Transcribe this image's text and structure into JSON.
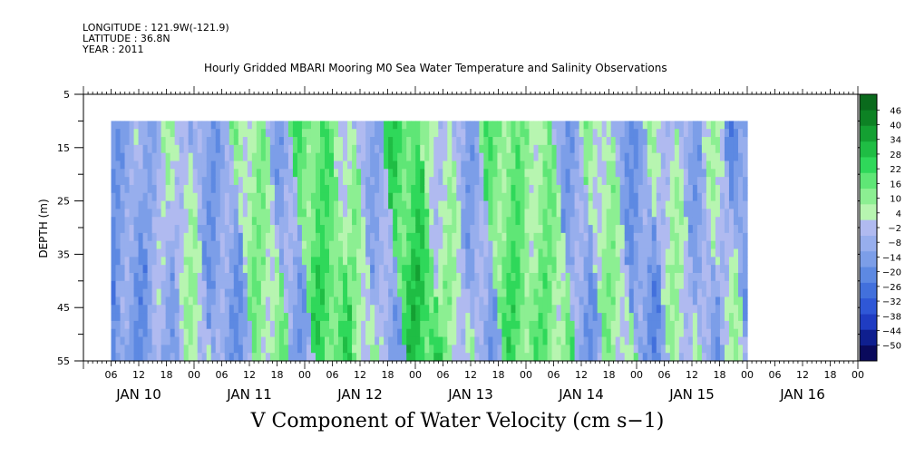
{
  "header": {
    "longitude": "LONGITUDE : 121.9W(-121.9)",
    "latitude": "LATITUDE : 36.8N",
    "year": "YEAR : 2011"
  },
  "chart_data": {
    "type": "heatmap",
    "title": "Hourly Gridded MBARI Mooring M0 Sea Water Temperature and Salinity Observations",
    "xlabel": "V Component of Water Velocity (cm s−1)",
    "ylabel": "DEPTH (m)",
    "y_range": [
      5,
      55
    ],
    "y_inverted": true,
    "y_ticks": [
      5,
      15,
      25,
      35,
      45,
      55
    ],
    "x_range_hours": [
      0,
      168
    ],
    "x_ticks_hour_labels": [
      "06",
      "12",
      "18",
      "00",
      "06",
      "12",
      "18",
      "00",
      "06",
      "12",
      "18",
      "00",
      "06",
      "12",
      "18",
      "00",
      "06",
      "12",
      "18",
      "00",
      "06",
      "12",
      "18",
      "00",
      "06",
      "12",
      "18",
      "00"
    ],
    "day_labels": [
      "JAN 10",
      "JAN 11",
      "JAN 12",
      "JAN 13",
      "JAN 14",
      "JAN 15",
      "JAN 16"
    ],
    "data_depth_range": [
      10,
      55
    ],
    "data_time_start_hour": 6,
    "data_time_end_hour": 144,
    "colorbar": {
      "levels": [
        -50,
        -44,
        -38,
        -32,
        -26,
        -20,
        -14,
        -8,
        -2,
        4,
        10,
        16,
        22,
        28,
        34,
        40,
        46
      ],
      "labels": [
        "46",
        "40",
        "34",
        "28",
        "22",
        "16",
        "10",
        "4",
        "−2",
        "−8",
        "−14",
        "−20",
        "−26",
        "−32",
        "−38",
        "−44",
        "−50"
      ],
      "colors_bottom_to_top": [
        "#0a0a5c",
        "#0f1f8f",
        "#1f3cc2",
        "#2f57d6",
        "#4270dc",
        "#5d89e2",
        "#7c9ee8",
        "#97aeed",
        "#b0baf0",
        "#b7f5b0",
        "#8cef92",
        "#5fe676",
        "#2fd85a",
        "#1fbd44",
        "#14a032",
        "#0d8224",
        "#0a6a1c"
      ]
    },
    "pattern_note": "Alternating diagonal bands of positive (green) and negative (blue) northward velocity propagating through the water column; strongest positive values near Jan 12-13 at depth 35-55 m.",
    "bands": [
      {
        "start": 6,
        "end": 13,
        "value": -9
      },
      {
        "start": 13,
        "end": 19,
        "value": -4
      },
      {
        "start": 19,
        "end": 25,
        "value": 5
      },
      {
        "start": 25,
        "end": 34,
        "value": -8
      },
      {
        "start": 34,
        "end": 42,
        "value": 10
      },
      {
        "start": 42,
        "end": 47,
        "value": -6
      },
      {
        "start": 47,
        "end": 56,
        "value": 18
      },
      {
        "start": 56,
        "end": 61,
        "value": 8
      },
      {
        "start": 61,
        "end": 67,
        "value": -5
      },
      {
        "start": 67,
        "end": 75,
        "value": 22
      },
      {
        "start": 75,
        "end": 82,
        "value": 6
      },
      {
        "start": 82,
        "end": 88,
        "value": -6
      },
      {
        "start": 88,
        "end": 96,
        "value": 16
      },
      {
        "start": 96,
        "end": 104,
        "value": 12
      },
      {
        "start": 104,
        "end": 110,
        "value": -7
      },
      {
        "start": 110,
        "end": 117,
        "value": 8
      },
      {
        "start": 117,
        "end": 124,
        "value": -10
      },
      {
        "start": 124,
        "end": 131,
        "value": 5
      },
      {
        "start": 131,
        "end": 136,
        "value": -6
      },
      {
        "start": 136,
        "end": 141,
        "value": 4
      },
      {
        "start": 141,
        "end": 144,
        "value": -12
      }
    ]
  }
}
